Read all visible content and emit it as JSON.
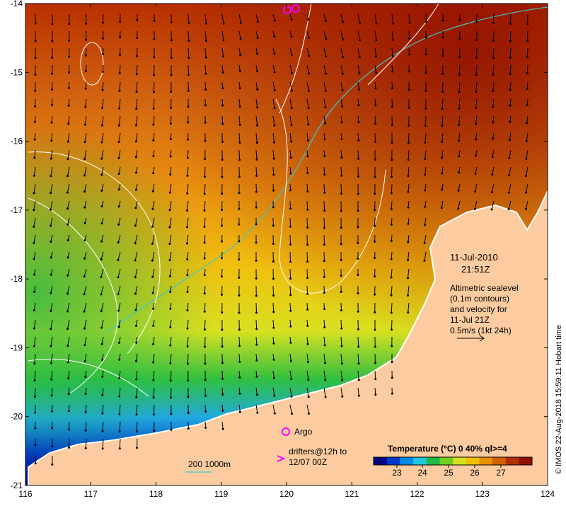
{
  "map": {
    "lon_range": [
      116,
      124
    ],
    "lat_range": [
      -21,
      -14
    ],
    "x_ticks": [
      "116",
      "117",
      "118",
      "119",
      "120",
      "121",
      "122",
      "123",
      "124"
    ],
    "y_ticks": [
      "-14",
      "-15",
      "-16",
      "-17",
      "-18",
      "-19",
      "-20",
      "-21"
    ]
  },
  "annotations": {
    "date": "11-Jul-2010",
    "time": "21:51Z",
    "desc_line1": "Altimetric sealevel",
    "desc_line2": "(0.1m contours)",
    "desc_line3": "and velocity for",
    "desc_line4": "11-Jul 21Z",
    "desc_line5": "0.5m/s (1kt 24h)"
  },
  "legend": {
    "argo_label": "Argo",
    "drifters_line1": "drifters@12h to",
    "drifters_line2": "12/07 00Z",
    "isobath_label": "200  1000m"
  },
  "colorbar": {
    "title": "Temperature (°C) 0 40% ql>=4",
    "ticks": [
      "23",
      "24",
      "25",
      "26",
      "27"
    ],
    "colors": [
      "#000080",
      "#0038c8",
      "#0088e8",
      "#20c8e0",
      "#20b848",
      "#70d020",
      "#d8e020",
      "#f0c000",
      "#e89000",
      "#d06000",
      "#b03000",
      "#901000"
    ]
  },
  "copyright": "© IMOS 22-Aug-2018 15:59:11 Hobart time",
  "colors": {
    "land": "#fccca0",
    "contour": "#ffffff",
    "isobath": "#40c8c8",
    "argo": "#ff00ff"
  }
}
